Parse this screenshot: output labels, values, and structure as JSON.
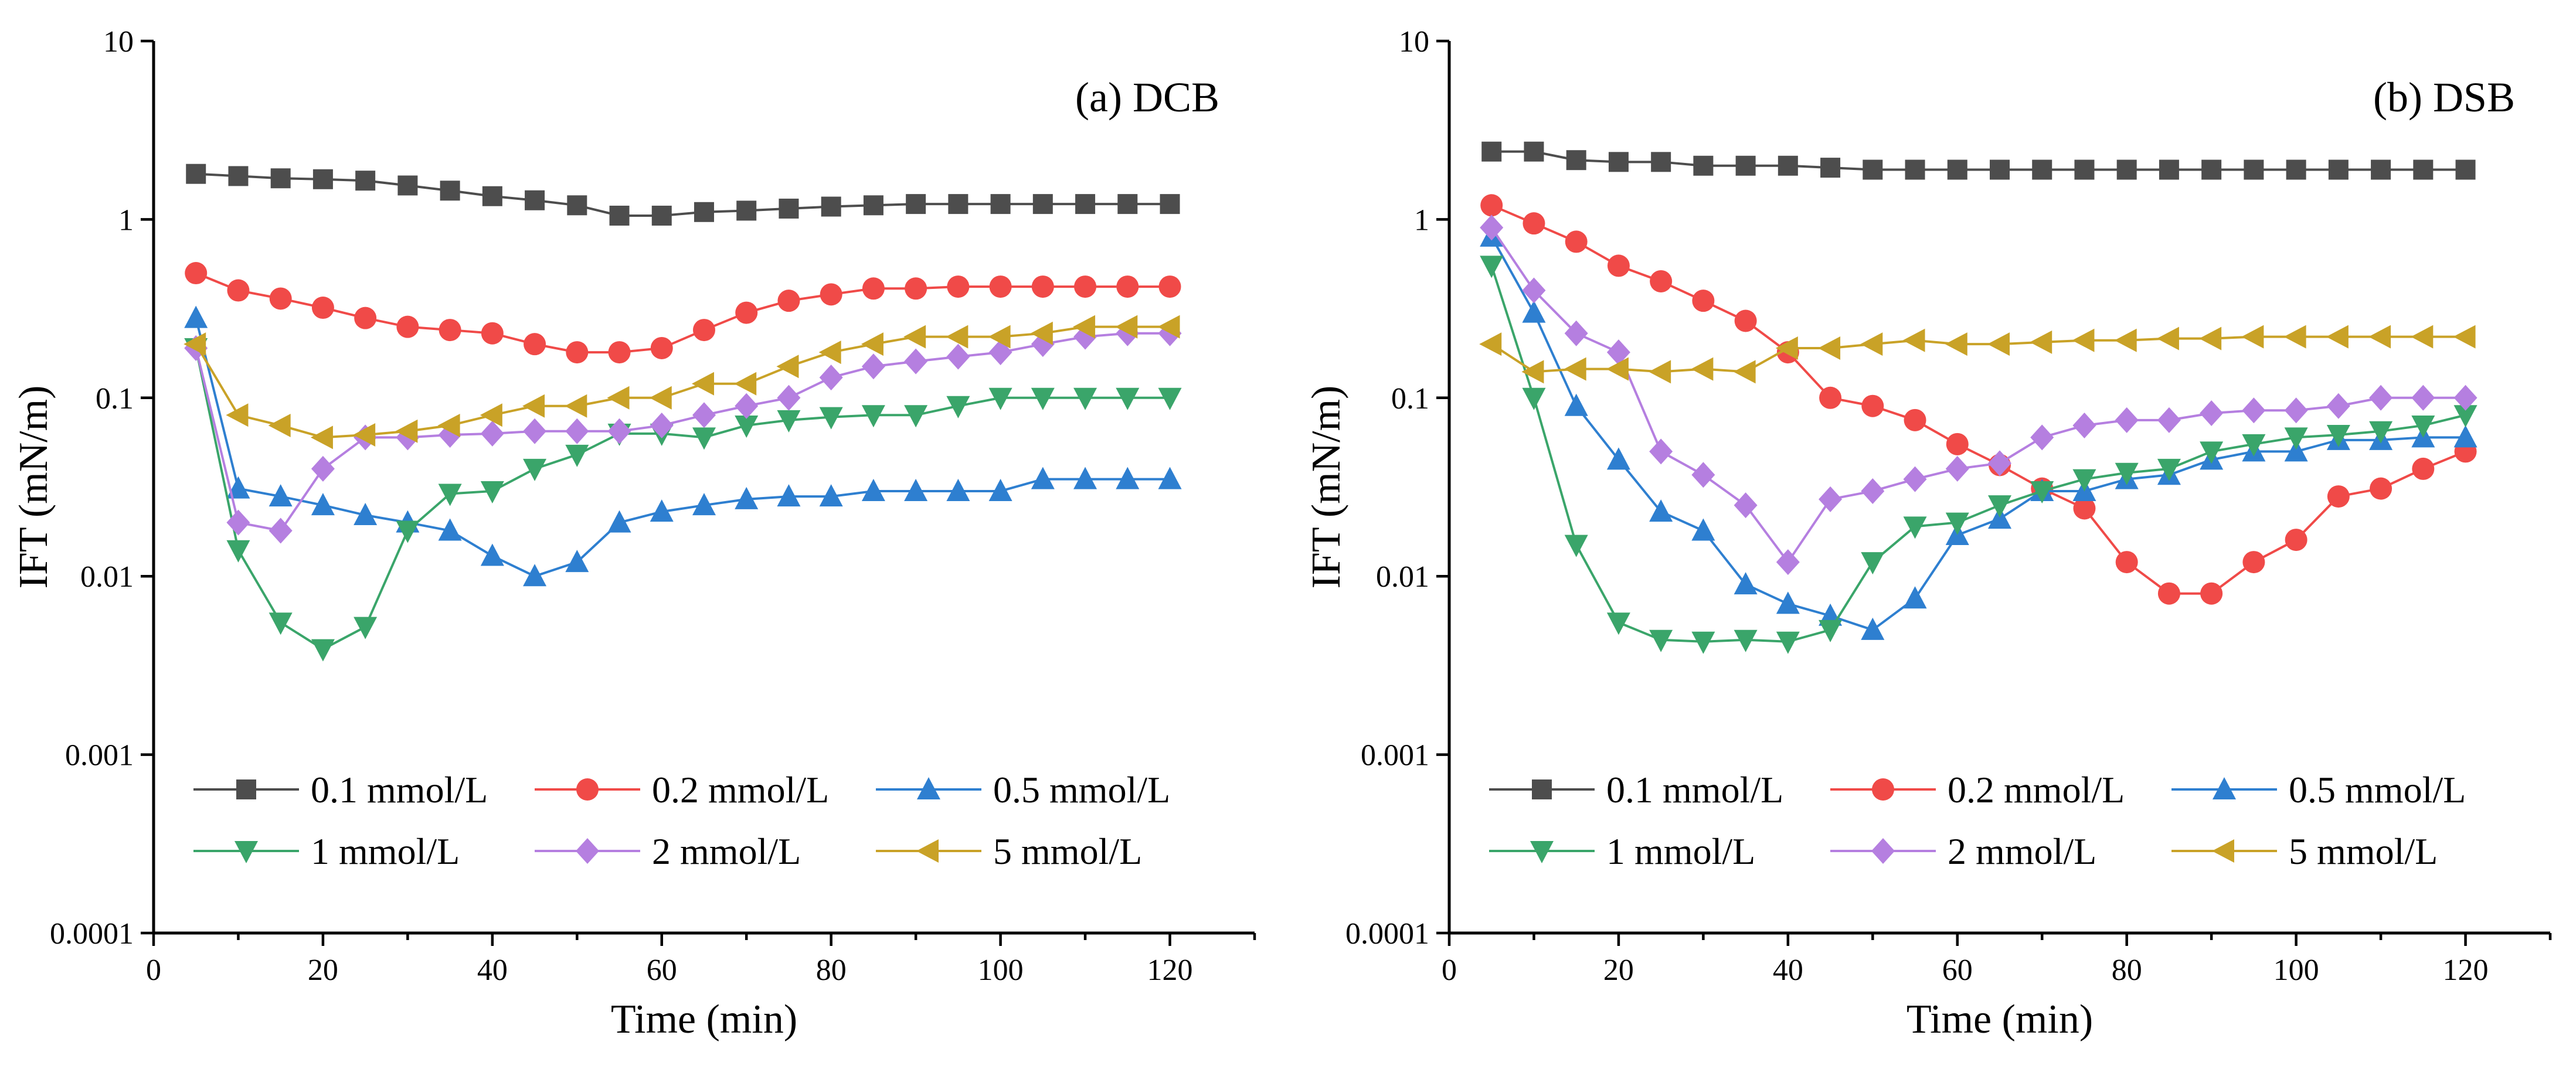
{
  "chart_data": [
    {
      "type": "line",
      "panel_label": "(a) DCB",
      "xlabel": "Time (min)",
      "ylabel": "IFT (mN/m)",
      "xlim": [
        0,
        130
      ],
      "ylim": [
        0.0001,
        10
      ],
      "yscale": "log",
      "x_ticks": [
        0,
        20,
        40,
        60,
        80,
        100,
        120
      ],
      "y_ticks": [
        0.0001,
        0.001,
        0.01,
        0.1,
        1,
        10
      ],
      "x_tick_labels": [
        "0",
        "20",
        "40",
        "60",
        "80",
        "100",
        "120"
      ],
      "y_tick_labels": [
        "0.0001",
        "0.001",
        "0.01",
        "0.1",
        "1",
        "10"
      ],
      "legend_position": "bottom",
      "x": [
        5,
        10,
        15,
        20,
        25,
        30,
        35,
        40,
        45,
        50,
        55,
        60,
        65,
        70,
        75,
        80,
        85,
        90,
        95,
        100,
        105,
        110,
        115,
        120
      ],
      "series": [
        {
          "name": "0.1 mmol/L",
          "color": "#4d4d4d",
          "marker": "square",
          "values": [
            1.8,
            1.75,
            1.7,
            1.68,
            1.65,
            1.55,
            1.45,
            1.35,
            1.28,
            1.2,
            1.05,
            1.05,
            1.1,
            1.12,
            1.15,
            1.18,
            1.2,
            1.22,
            1.22,
            1.22,
            1.22,
            1.22,
            1.22,
            1.22
          ]
        },
        {
          "name": "0.2 mmol/L",
          "color": "#f04a48",
          "marker": "circle",
          "values": [
            0.5,
            0.4,
            0.36,
            0.32,
            0.28,
            0.25,
            0.24,
            0.23,
            0.2,
            0.18,
            0.18,
            0.19,
            0.24,
            0.3,
            0.35,
            0.38,
            0.41,
            0.41,
            0.42,
            0.42,
            0.42,
            0.42,
            0.42,
            0.42
          ]
        },
        {
          "name": "0.5 mmol/L",
          "color": "#2e7fd0",
          "marker": "triangle-up",
          "values": [
            0.28,
            0.031,
            0.028,
            0.025,
            0.022,
            0.02,
            0.018,
            0.013,
            0.01,
            0.012,
            0.02,
            0.023,
            0.025,
            0.027,
            0.028,
            0.028,
            0.03,
            0.03,
            0.03,
            0.03,
            0.035,
            0.035,
            0.035,
            0.035
          ]
        },
        {
          "name": "1 mmol/L",
          "color": "#3aa56a",
          "marker": "triangle-down",
          "values": [
            0.19,
            0.014,
            0.0055,
            0.0039,
            0.0052,
            0.018,
            0.029,
            0.03,
            0.04,
            0.048,
            0.063,
            0.063,
            0.06,
            0.07,
            0.075,
            0.078,
            0.08,
            0.08,
            0.09,
            0.1,
            0.1,
            0.1,
            0.1,
            0.1
          ]
        },
        {
          "name": "2 mmol/L",
          "color": "#b57fe0",
          "marker": "diamond",
          "values": [
            0.19,
            0.02,
            0.018,
            0.04,
            0.06,
            0.06,
            0.062,
            0.063,
            0.065,
            0.065,
            0.065,
            0.07,
            0.08,
            0.09,
            0.1,
            0.13,
            0.15,
            0.16,
            0.17,
            0.18,
            0.2,
            0.22,
            0.23,
            0.23
          ]
        },
        {
          "name": "5 mmol/L",
          "color": "#c9a227",
          "marker": "triangle-left",
          "values": [
            0.2,
            0.08,
            0.07,
            0.06,
            0.062,
            0.065,
            0.07,
            0.08,
            0.09,
            0.09,
            0.1,
            0.1,
            0.12,
            0.12,
            0.15,
            0.18,
            0.2,
            0.22,
            0.22,
            0.22,
            0.23,
            0.25,
            0.25,
            0.25
          ]
        }
      ]
    },
    {
      "type": "line",
      "panel_label": "(b) DSB",
      "xlabel": "Time (min)",
      "ylabel": "IFT (mN/m)",
      "xlim": [
        0,
        130
      ],
      "ylim": [
        0.0001,
        10
      ],
      "yscale": "log",
      "x_ticks": [
        0,
        20,
        40,
        60,
        80,
        100,
        120
      ],
      "y_ticks": [
        0.0001,
        0.001,
        0.01,
        0.1,
        1,
        10
      ],
      "x_tick_labels": [
        "0",
        "20",
        "40",
        "60",
        "80",
        "100",
        "120"
      ],
      "y_tick_labels": [
        "0.0001",
        "0.001",
        "0.01",
        "0.1",
        "1",
        "10"
      ],
      "legend_position": "bottom",
      "x": [
        5,
        10,
        15,
        20,
        25,
        30,
        35,
        40,
        45,
        50,
        55,
        60,
        65,
        70,
        75,
        80,
        85,
        90,
        95,
        100,
        105,
        110,
        115,
        120
      ],
      "series": [
        {
          "name": "0.1 mmol/L",
          "color": "#4d4d4d",
          "marker": "square",
          "values": [
            2.4,
            2.4,
            2.15,
            2.1,
            2.1,
            2.0,
            2.0,
            2.0,
            1.95,
            1.9,
            1.9,
            1.9,
            1.9,
            1.9,
            1.9,
            1.9,
            1.9,
            1.9,
            1.9,
            1.9,
            1.9,
            1.9,
            1.9,
            1.9
          ]
        },
        {
          "name": "0.2 mmol/L",
          "color": "#f04a48",
          "marker": "circle",
          "values": [
            1.2,
            0.95,
            0.75,
            0.55,
            0.45,
            0.35,
            0.27,
            0.18,
            0.1,
            0.09,
            0.075,
            0.055,
            0.042,
            0.031,
            0.024,
            0.012,
            0.008,
            0.008,
            0.012,
            0.016,
            0.028,
            0.031,
            0.04,
            0.05
          ]
        },
        {
          "name": "0.5 mmol/L",
          "color": "#2e7fd0",
          "marker": "triangle-up",
          "values": [
            0.8,
            0.3,
            0.09,
            0.045,
            0.023,
            0.018,
            0.009,
            0.007,
            0.006,
            0.005,
            0.0075,
            0.017,
            0.021,
            0.03,
            0.03,
            0.035,
            0.037,
            0.045,
            0.05,
            0.05,
            0.058,
            0.058,
            0.06,
            0.06
          ]
        },
        {
          "name": "1 mmol/L",
          "color": "#3aa56a",
          "marker": "triangle-down",
          "values": [
            0.55,
            0.1,
            0.015,
            0.0055,
            0.0044,
            0.0043,
            0.0044,
            0.0043,
            0.005,
            0.012,
            0.019,
            0.02,
            0.025,
            0.03,
            0.035,
            0.038,
            0.04,
            0.05,
            0.055,
            0.06,
            0.062,
            0.065,
            0.07,
            0.08
          ]
        },
        {
          "name": "2 mmol/L",
          "color": "#b57fe0",
          "marker": "diamond",
          "values": [
            0.9,
            0.4,
            0.23,
            0.18,
            0.05,
            0.037,
            0.025,
            0.012,
            0.027,
            0.03,
            0.035,
            0.04,
            0.043,
            0.06,
            0.07,
            0.075,
            0.075,
            0.082,
            0.085,
            0.085,
            0.09,
            0.1,
            0.1,
            0.1
          ]
        },
        {
          "name": "5 mmol/L",
          "color": "#c9a227",
          "marker": "triangle-left",
          "values": [
            0.2,
            0.14,
            0.145,
            0.145,
            0.14,
            0.145,
            0.14,
            0.19,
            0.19,
            0.2,
            0.21,
            0.2,
            0.2,
            0.205,
            0.21,
            0.21,
            0.215,
            0.215,
            0.22,
            0.22,
            0.22,
            0.22,
            0.22,
            0.22
          ]
        }
      ]
    }
  ]
}
